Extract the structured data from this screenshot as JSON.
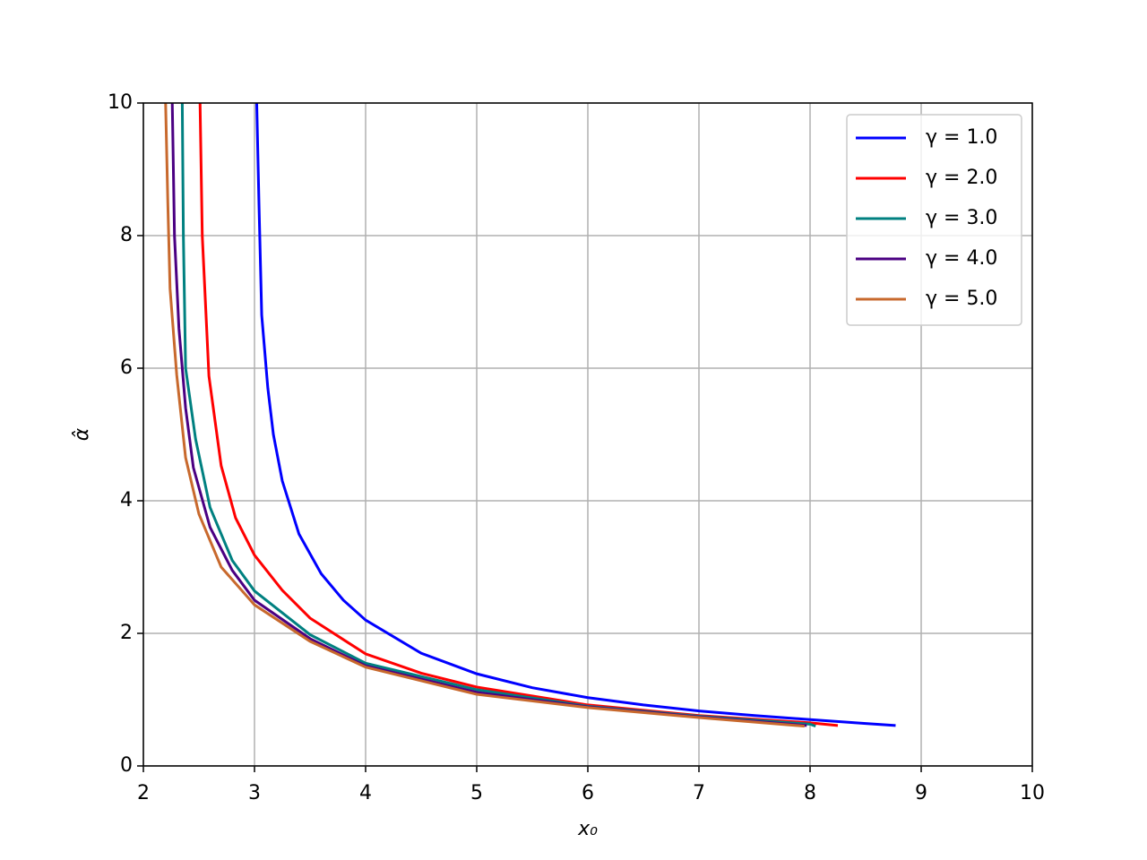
{
  "chart_data": {
    "type": "line",
    "xlabel": "x₀",
    "ylabel": "α̂",
    "xlim": [
      2,
      10
    ],
    "xticks": [
      2,
      3,
      4,
      5,
      6,
      7,
      8,
      9,
      10
    ],
    "ylim": [
      0,
      10
    ],
    "yticks": [
      0,
      2,
      4,
      6,
      8,
      10
    ],
    "grid": true,
    "legend": "upper right",
    "series": [
      {
        "name": "γ = 1.0",
        "color": "#0000ff",
        "x": [
          3.02,
          3.04,
          3.065,
          3.12,
          3.17,
          3.25,
          3.4,
          3.6,
          3.8,
          4.0,
          4.5,
          5,
          5.5,
          6,
          6.5,
          7,
          7.5,
          8,
          8.5,
          8.77
        ],
        "values": [
          10,
          8.5,
          6.8,
          5.7,
          5.0,
          4.3,
          3.5,
          2.9,
          2.5,
          2.2,
          1.7,
          1.39,
          1.18,
          1.03,
          0.92,
          0.83,
          0.76,
          0.7,
          0.64,
          0.61
        ]
      },
      {
        "name": "γ = 2.0",
        "color": "#ff0000",
        "x": [
          2.51,
          2.53,
          2.59,
          2.7,
          2.83,
          3.0,
          3.25,
          3.5,
          4.0,
          4.5,
          5,
          6,
          7,
          8,
          8.25
        ],
        "values": [
          10,
          8.0,
          5.88,
          4.53,
          3.74,
          3.18,
          2.65,
          2.23,
          1.69,
          1.4,
          1.19,
          0.92,
          0.76,
          0.65,
          0.61
        ]
      },
      {
        "name": "γ = 3.0",
        "color": "#008080",
        "x": [
          2.35,
          2.36,
          2.38,
          2.47,
          2.6,
          2.8,
          3.0,
          3.5,
          4.0,
          5,
          6,
          7,
          8,
          8.05
        ],
        "values": [
          10,
          8.0,
          6.0,
          4.93,
          3.9,
          3.1,
          2.64,
          1.98,
          1.55,
          1.15,
          0.9,
          0.75,
          0.63,
          0.6
        ]
      },
      {
        "name": "γ = 4.0",
        "color": "#4b0082",
        "x": [
          2.26,
          2.28,
          2.32,
          2.38,
          2.45,
          2.6,
          2.8,
          3.0,
          3.5,
          4.0,
          5,
          6,
          7,
          7.97
        ],
        "values": [
          10,
          8.0,
          6.6,
          5.4,
          4.5,
          3.6,
          2.95,
          2.5,
          1.92,
          1.51,
          1.11,
          0.89,
          0.74,
          0.61
        ]
      },
      {
        "name": "γ = 5.0",
        "color": "#c8692d",
        "x": [
          2.2,
          2.22,
          2.24,
          2.3,
          2.38,
          2.5,
          2.7,
          3.0,
          3.5,
          4.0,
          5,
          6,
          7,
          7.95
        ],
        "values": [
          10,
          8.5,
          7.2,
          5.9,
          4.65,
          3.8,
          3.0,
          2.43,
          1.88,
          1.49,
          1.08,
          0.88,
          0.73,
          0.6
        ]
      }
    ]
  }
}
